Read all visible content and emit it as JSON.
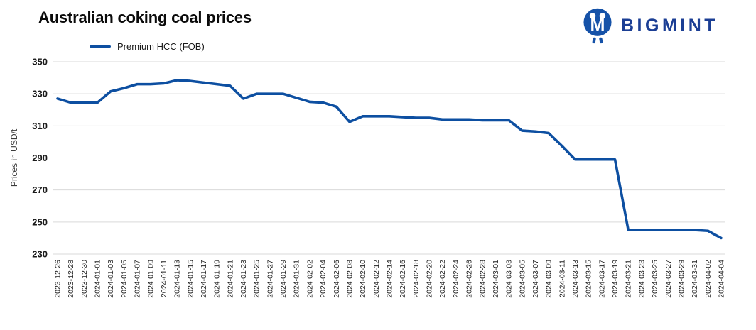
{
  "header": {
    "title": "Australian coking coal prices"
  },
  "logo": {
    "text": "BIGMINT",
    "icon": "bigmint-people-icon",
    "icon_color": "#1552a8",
    "text_color": "#1b3e94"
  },
  "legend": {
    "label": "Premium HCC (FOB)"
  },
  "colors": {
    "line": "#0d4fa1",
    "gridline": "#d9d9d9",
    "y_tick_text": "#1a1a1a",
    "x_tick_text": "#222222"
  },
  "chart_data": {
    "type": "line",
    "title": "Australian coking coal prices",
    "ylabel": "Prices in USD/t",
    "xlabel": "",
    "ylim": [
      230,
      350
    ],
    "yticks": [
      230,
      250,
      270,
      290,
      310,
      330,
      350
    ],
    "grid": "horizontal",
    "legend_position": "top-left",
    "x": [
      "2023-12-26",
      "2023-12-28",
      "2023-12-30",
      "2024-01-01",
      "2024-01-03",
      "2024-01-05",
      "2024-01-07",
      "2024-01-09",
      "2024-01-11",
      "2024-01-13",
      "2024-01-15",
      "2024-01-17",
      "2024-01-19",
      "2024-01-21",
      "2024-01-23",
      "2024-01-25",
      "2024-01-27",
      "2024-01-29",
      "2024-01-31",
      "2024-02-02",
      "2024-02-04",
      "2024-02-06",
      "2024-02-08",
      "2024-02-10",
      "2024-02-12",
      "2024-02-14",
      "2024-02-16",
      "2024-02-18",
      "2024-02-20",
      "2024-02-22",
      "2024-02-24",
      "2024-02-26",
      "2024-02-28",
      "2024-03-01",
      "2024-03-03",
      "2024-03-05",
      "2024-03-07",
      "2024-03-09",
      "2024-03-11",
      "2024-03-13",
      "2024-03-15",
      "2024-03-17",
      "2024-03-19",
      "2024-03-21",
      "2024-03-23",
      "2024-03-25",
      "2024-03-27",
      "2024-03-29",
      "2024-03-31",
      "2024-04-02",
      "2024-04-04"
    ],
    "series": [
      {
        "name": "Premium HCC (FOB)",
        "color": "#0d4fa1",
        "values": [
          327,
          324.5,
          324.5,
          324.5,
          331.5,
          333.5,
          336,
          336,
          336.5,
          338.5,
          338,
          337,
          336,
          335,
          327,
          330,
          330,
          330,
          327.5,
          325,
          324.5,
          322,
          312.5,
          316,
          316,
          316,
          315.5,
          315,
          315,
          314,
          314,
          314,
          313.5,
          313.5,
          313.5,
          307,
          306.5,
          305.5,
          297.5,
          289,
          289,
          289,
          289,
          245,
          245,
          245,
          245,
          245,
          245,
          244.5,
          240
        ]
      }
    ]
  }
}
